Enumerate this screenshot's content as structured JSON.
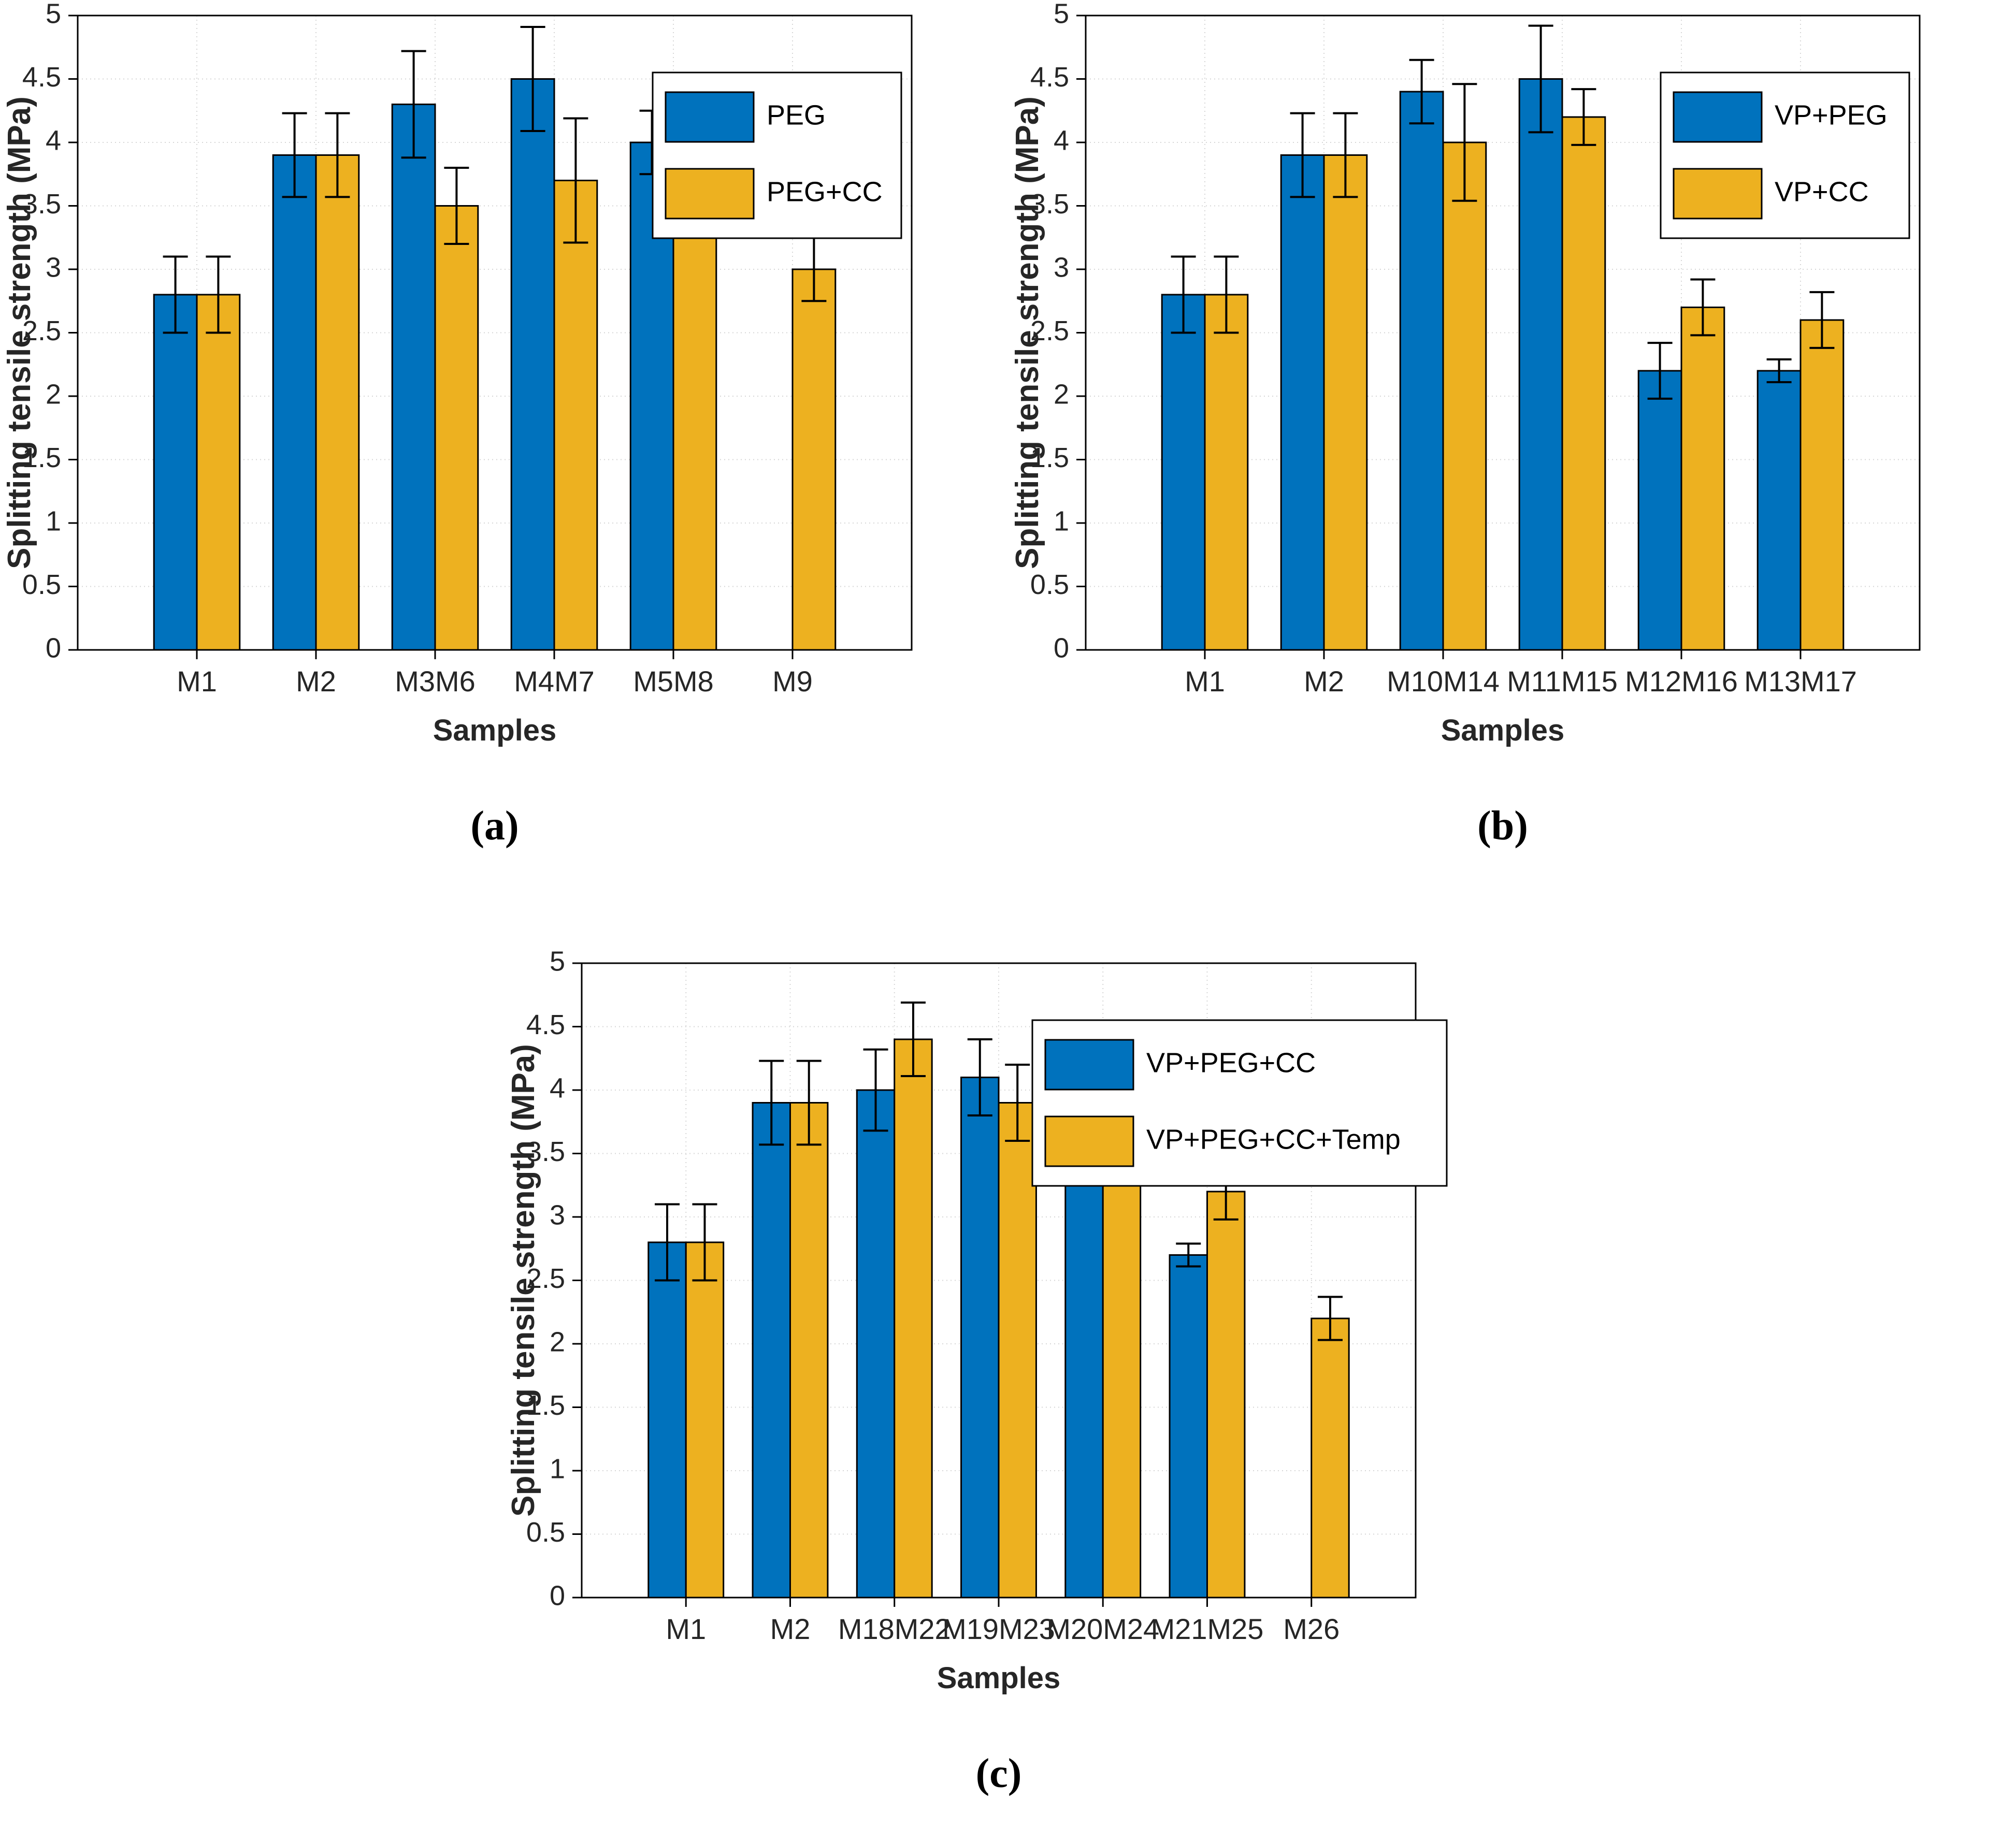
{
  "colors": {
    "blue": "#0072BD",
    "yellow": "#EDB120",
    "grid": "#d6d6d6",
    "axis": "#000000",
    "text": "#262626",
    "legend_bg": "#ffffff"
  },
  "chart_data": [
    {
      "type": "bar",
      "panel_label": "(a)",
      "xlabel": "Samples",
      "ylabel": "Splitting tensile strength (MPa)",
      "ylim": [
        0,
        5
      ],
      "ytick_step": 0.5,
      "grid": true,
      "legend_position": "top-right",
      "categories": [
        "M1",
        "M2",
        "M3M6",
        "M4M7",
        "M5M8",
        "M9"
      ],
      "series": [
        {
          "name": "PEG",
          "color": "blue",
          "values": [
            2.8,
            3.9,
            4.3,
            4.5,
            4.0,
            null
          ],
          "errors": [
            0.3,
            0.33,
            0.42,
            0.41,
            0.25,
            null
          ]
        },
        {
          "name": "PEG+CC",
          "color": "yellow",
          "values": [
            2.8,
            3.9,
            3.5,
            3.7,
            4.3,
            3.0
          ],
          "errors": [
            0.3,
            0.33,
            0.3,
            0.49,
            0.15,
            0.25
          ]
        }
      ]
    },
    {
      "type": "bar",
      "panel_label": "(b)",
      "xlabel": "Samples",
      "ylabel": "Splitting tensile strength (MPa)",
      "ylim": [
        0,
        5
      ],
      "ytick_step": 0.5,
      "grid": true,
      "legend_position": "top-right",
      "categories": [
        "M1",
        "M2",
        "M10M14",
        "M11M15",
        "M12M16",
        "M13M17"
      ],
      "series": [
        {
          "name": "VP+PEG",
          "color": "blue",
          "values": [
            2.8,
            3.9,
            4.4,
            4.5,
            2.2,
            2.2
          ],
          "errors": [
            0.3,
            0.33,
            0.25,
            0.42,
            0.22,
            0.09
          ]
        },
        {
          "name": "VP+CC",
          "color": "yellow",
          "values": [
            2.8,
            3.9,
            4.0,
            4.2,
            2.7,
            2.6
          ],
          "errors": [
            0.3,
            0.33,
            0.46,
            0.22,
            0.22,
            0.22
          ]
        }
      ]
    },
    {
      "type": "bar",
      "panel_label": "(c)",
      "xlabel": "Samples",
      "ylabel": "Splitting tensile strength (MPa)",
      "ylim": [
        0,
        5
      ],
      "ytick_step": 0.5,
      "grid": true,
      "legend_position": "top-right",
      "categories": [
        "M1",
        "M2",
        "M18M22",
        "M19M23",
        "M20M24",
        "M21M25",
        "M26"
      ],
      "series": [
        {
          "name": "VP+PEG+CC",
          "color": "blue",
          "values": [
            2.8,
            3.9,
            4.0,
            4.1,
            3.7,
            2.7,
            null
          ],
          "errors": [
            0.3,
            0.33,
            0.32,
            0.3,
            0.29,
            0.09,
            null
          ]
        },
        {
          "name": "VP+PEG+CC+Temp",
          "color": "yellow",
          "values": [
            2.8,
            3.9,
            4.4,
            3.9,
            4.3,
            3.2,
            2.2
          ],
          "errors": [
            0.3,
            0.33,
            0.29,
            0.3,
            0.22,
            0.22,
            0.17
          ]
        }
      ]
    }
  ]
}
